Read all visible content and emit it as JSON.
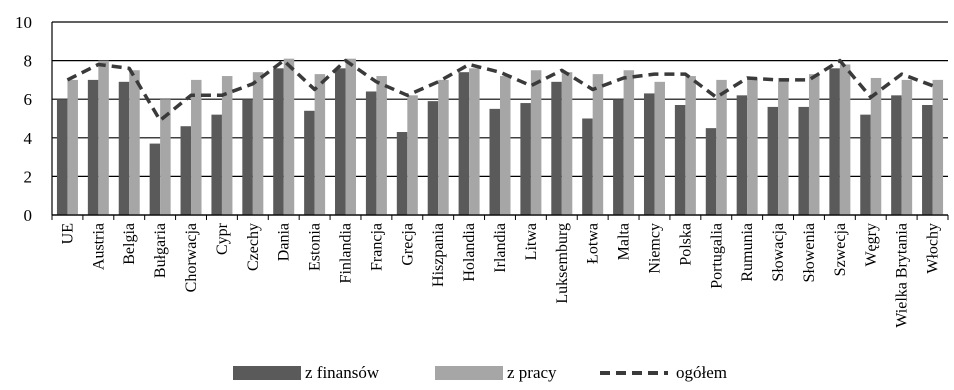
{
  "chart_data": {
    "type": "bar",
    "title": "",
    "xlabel": "",
    "ylabel": "",
    "ylim": [
      0,
      10
    ],
    "yticks": [
      0,
      2,
      4,
      6,
      8,
      10
    ],
    "grid": true,
    "legend_position": "bottom",
    "categories": [
      "UE",
      "Austria",
      "Belgia",
      "Bułgaria",
      "Chorwacja",
      "Cypr",
      "Czechy",
      "Dania",
      "Estonia",
      "Finlandia",
      "Francja",
      "Grecja",
      "Hiszpania",
      "Holandia",
      "Irlandia",
      "Litwa",
      "Luksemburg",
      "Łotwa",
      "Malta",
      "Niemcy",
      "Polska",
      "Portugalia",
      "Rumunia",
      "Słowacja",
      "Słowenia",
      "Szwecja",
      "Węgry",
      "Wielka Brytania",
      "Włochy"
    ],
    "series": [
      {
        "name": "z finansów",
        "kind": "bar",
        "color": "#5a5a5a",
        "values": [
          6.0,
          7.0,
          6.9,
          3.7,
          4.6,
          5.2,
          6.0,
          7.6,
          5.4,
          7.6,
          6.4,
          4.3,
          5.9,
          7.4,
          5.5,
          5.8,
          6.9,
          5.0,
          6.0,
          6.3,
          5.7,
          4.5,
          6.2,
          5.6,
          5.6,
          7.6,
          5.2,
          6.2,
          5.7
        ]
      },
      {
        "name": "z pracy",
        "kind": "bar",
        "color": "#a6a6a6",
        "values": [
          7.0,
          8.0,
          7.5,
          6.0,
          7.0,
          7.2,
          7.4,
          8.1,
          7.3,
          8.1,
          7.2,
          6.2,
          7.0,
          7.6,
          7.2,
          7.5,
          7.4,
          7.3,
          7.5,
          6.9,
          7.2,
          7.0,
          7.1,
          7.1,
          7.3,
          7.8,
          7.1,
          7.0,
          7.0
        ]
      },
      {
        "name": "ogółem",
        "kind": "line",
        "style": "dashed",
        "color": "#3a3a3a",
        "values": [
          7.0,
          7.8,
          7.6,
          4.9,
          6.2,
          6.2,
          6.8,
          8.0,
          6.5,
          8.0,
          6.9,
          6.2,
          6.9,
          7.8,
          7.4,
          6.7,
          7.5,
          6.5,
          7.1,
          7.3,
          7.3,
          6.1,
          7.1,
          7.0,
          7.0,
          8.0,
          6.1,
          7.3,
          6.7
        ]
      }
    ]
  }
}
